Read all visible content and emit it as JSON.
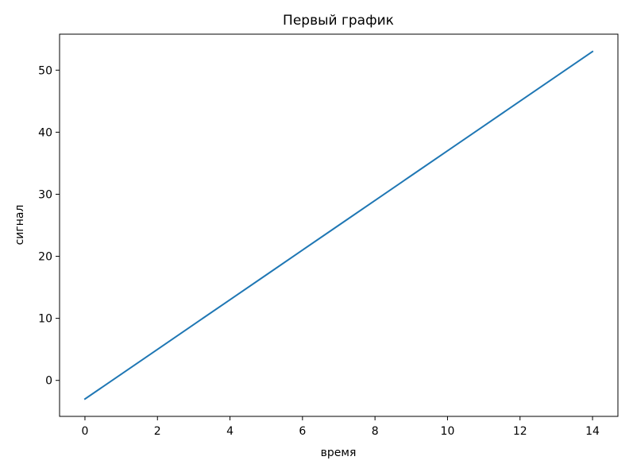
{
  "chart_data": {
    "type": "line",
    "title": "Первый график",
    "xlabel": "время",
    "ylabel": "сигнал",
    "xlim": [
      -0.7,
      14.7
    ],
    "ylim": [
      -5.8,
      55.8
    ],
    "xticks": [
      0,
      2,
      4,
      6,
      8,
      10,
      12,
      14
    ],
    "yticks": [
      0,
      10,
      20,
      30,
      40,
      50
    ],
    "grid": false,
    "series": [
      {
        "color": "#1f77b4",
        "x": [
          0,
          1,
          2,
          3,
          4,
          5,
          6,
          7,
          8,
          9,
          10,
          11,
          12,
          13,
          14
        ],
        "y": [
          -3,
          1,
          5,
          9,
          13,
          17,
          21,
          25,
          29,
          33,
          37,
          41,
          45,
          49,
          53
        ]
      }
    ]
  }
}
